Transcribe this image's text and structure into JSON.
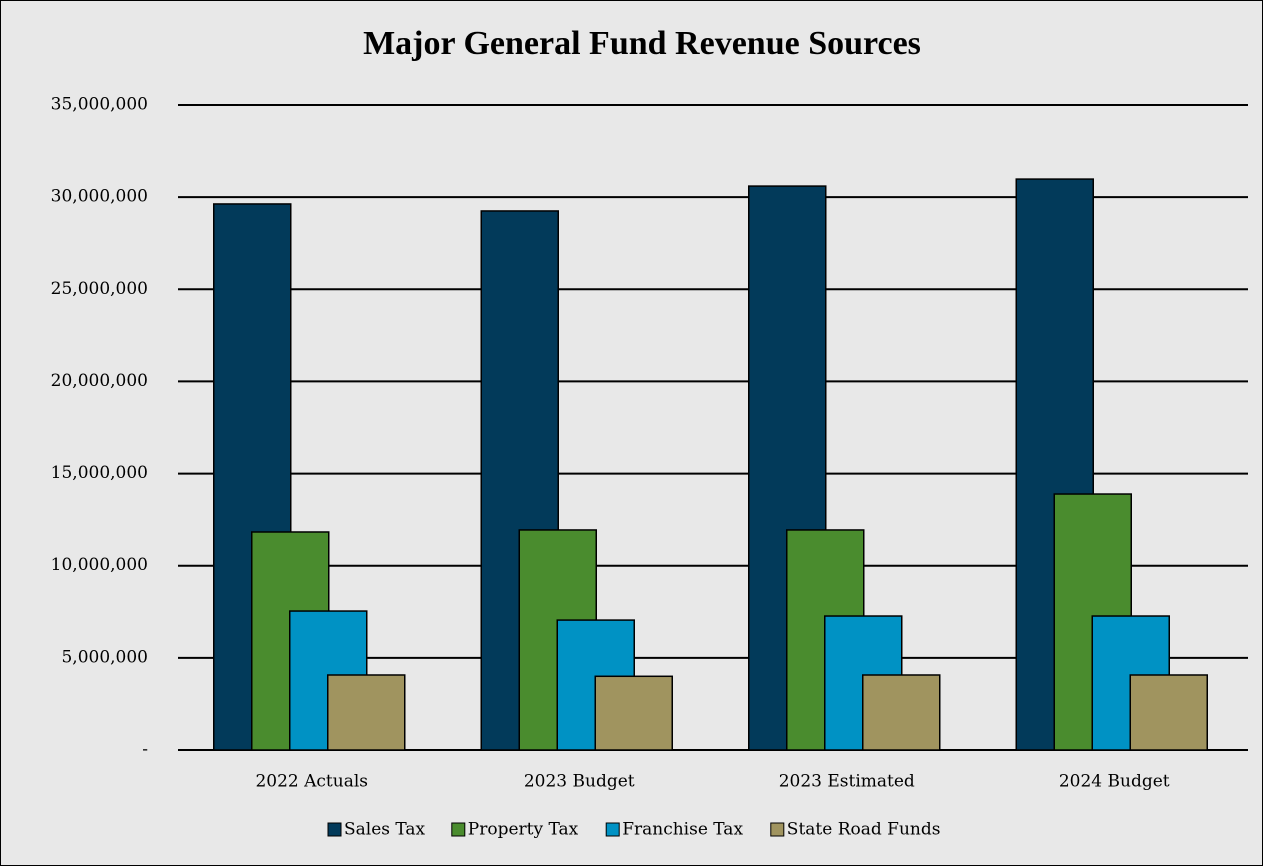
{
  "chart_data": {
    "type": "bar",
    "title": "Major General Fund Revenue Sources",
    "categories": [
      "2022 Actuals",
      "2023 Budget",
      "2023 Estimated",
      "2024 Budget"
    ],
    "series": [
      {
        "name": "Sales Tax",
        "color": "#023a5a",
        "values": [
          29630000,
          29250000,
          30600000,
          30980000
        ]
      },
      {
        "name": "Property Tax",
        "color": "#4a8c2e",
        "values": [
          11830000,
          11940000,
          11940000,
          13890000
        ]
      },
      {
        "name": "Franchise Tax",
        "color": "#0092c4",
        "values": [
          7540000,
          7050000,
          7270000,
          7270000
        ]
      },
      {
        "name": "State Road Funds",
        "color": "#a0945f",
        "values": [
          4070000,
          4000000,
          4070000,
          4070000
        ]
      }
    ],
    "ylim": [
      0,
      35000000
    ],
    "yticks": [
      {
        "value": 0,
        "label": "-"
      },
      {
        "value": 5000000,
        "label": "5,000,000"
      },
      {
        "value": 10000000,
        "label": "10,000,000"
      },
      {
        "value": 15000000,
        "label": "15,000,000"
      },
      {
        "value": 20000000,
        "label": "20,000,000"
      },
      {
        "value": 25000000,
        "label": "25,000,000"
      },
      {
        "value": 30000000,
        "label": "30,000,000"
      },
      {
        "value": 35000000,
        "label": "35,000,000"
      }
    ],
    "grid": true,
    "legend": "bottom"
  }
}
